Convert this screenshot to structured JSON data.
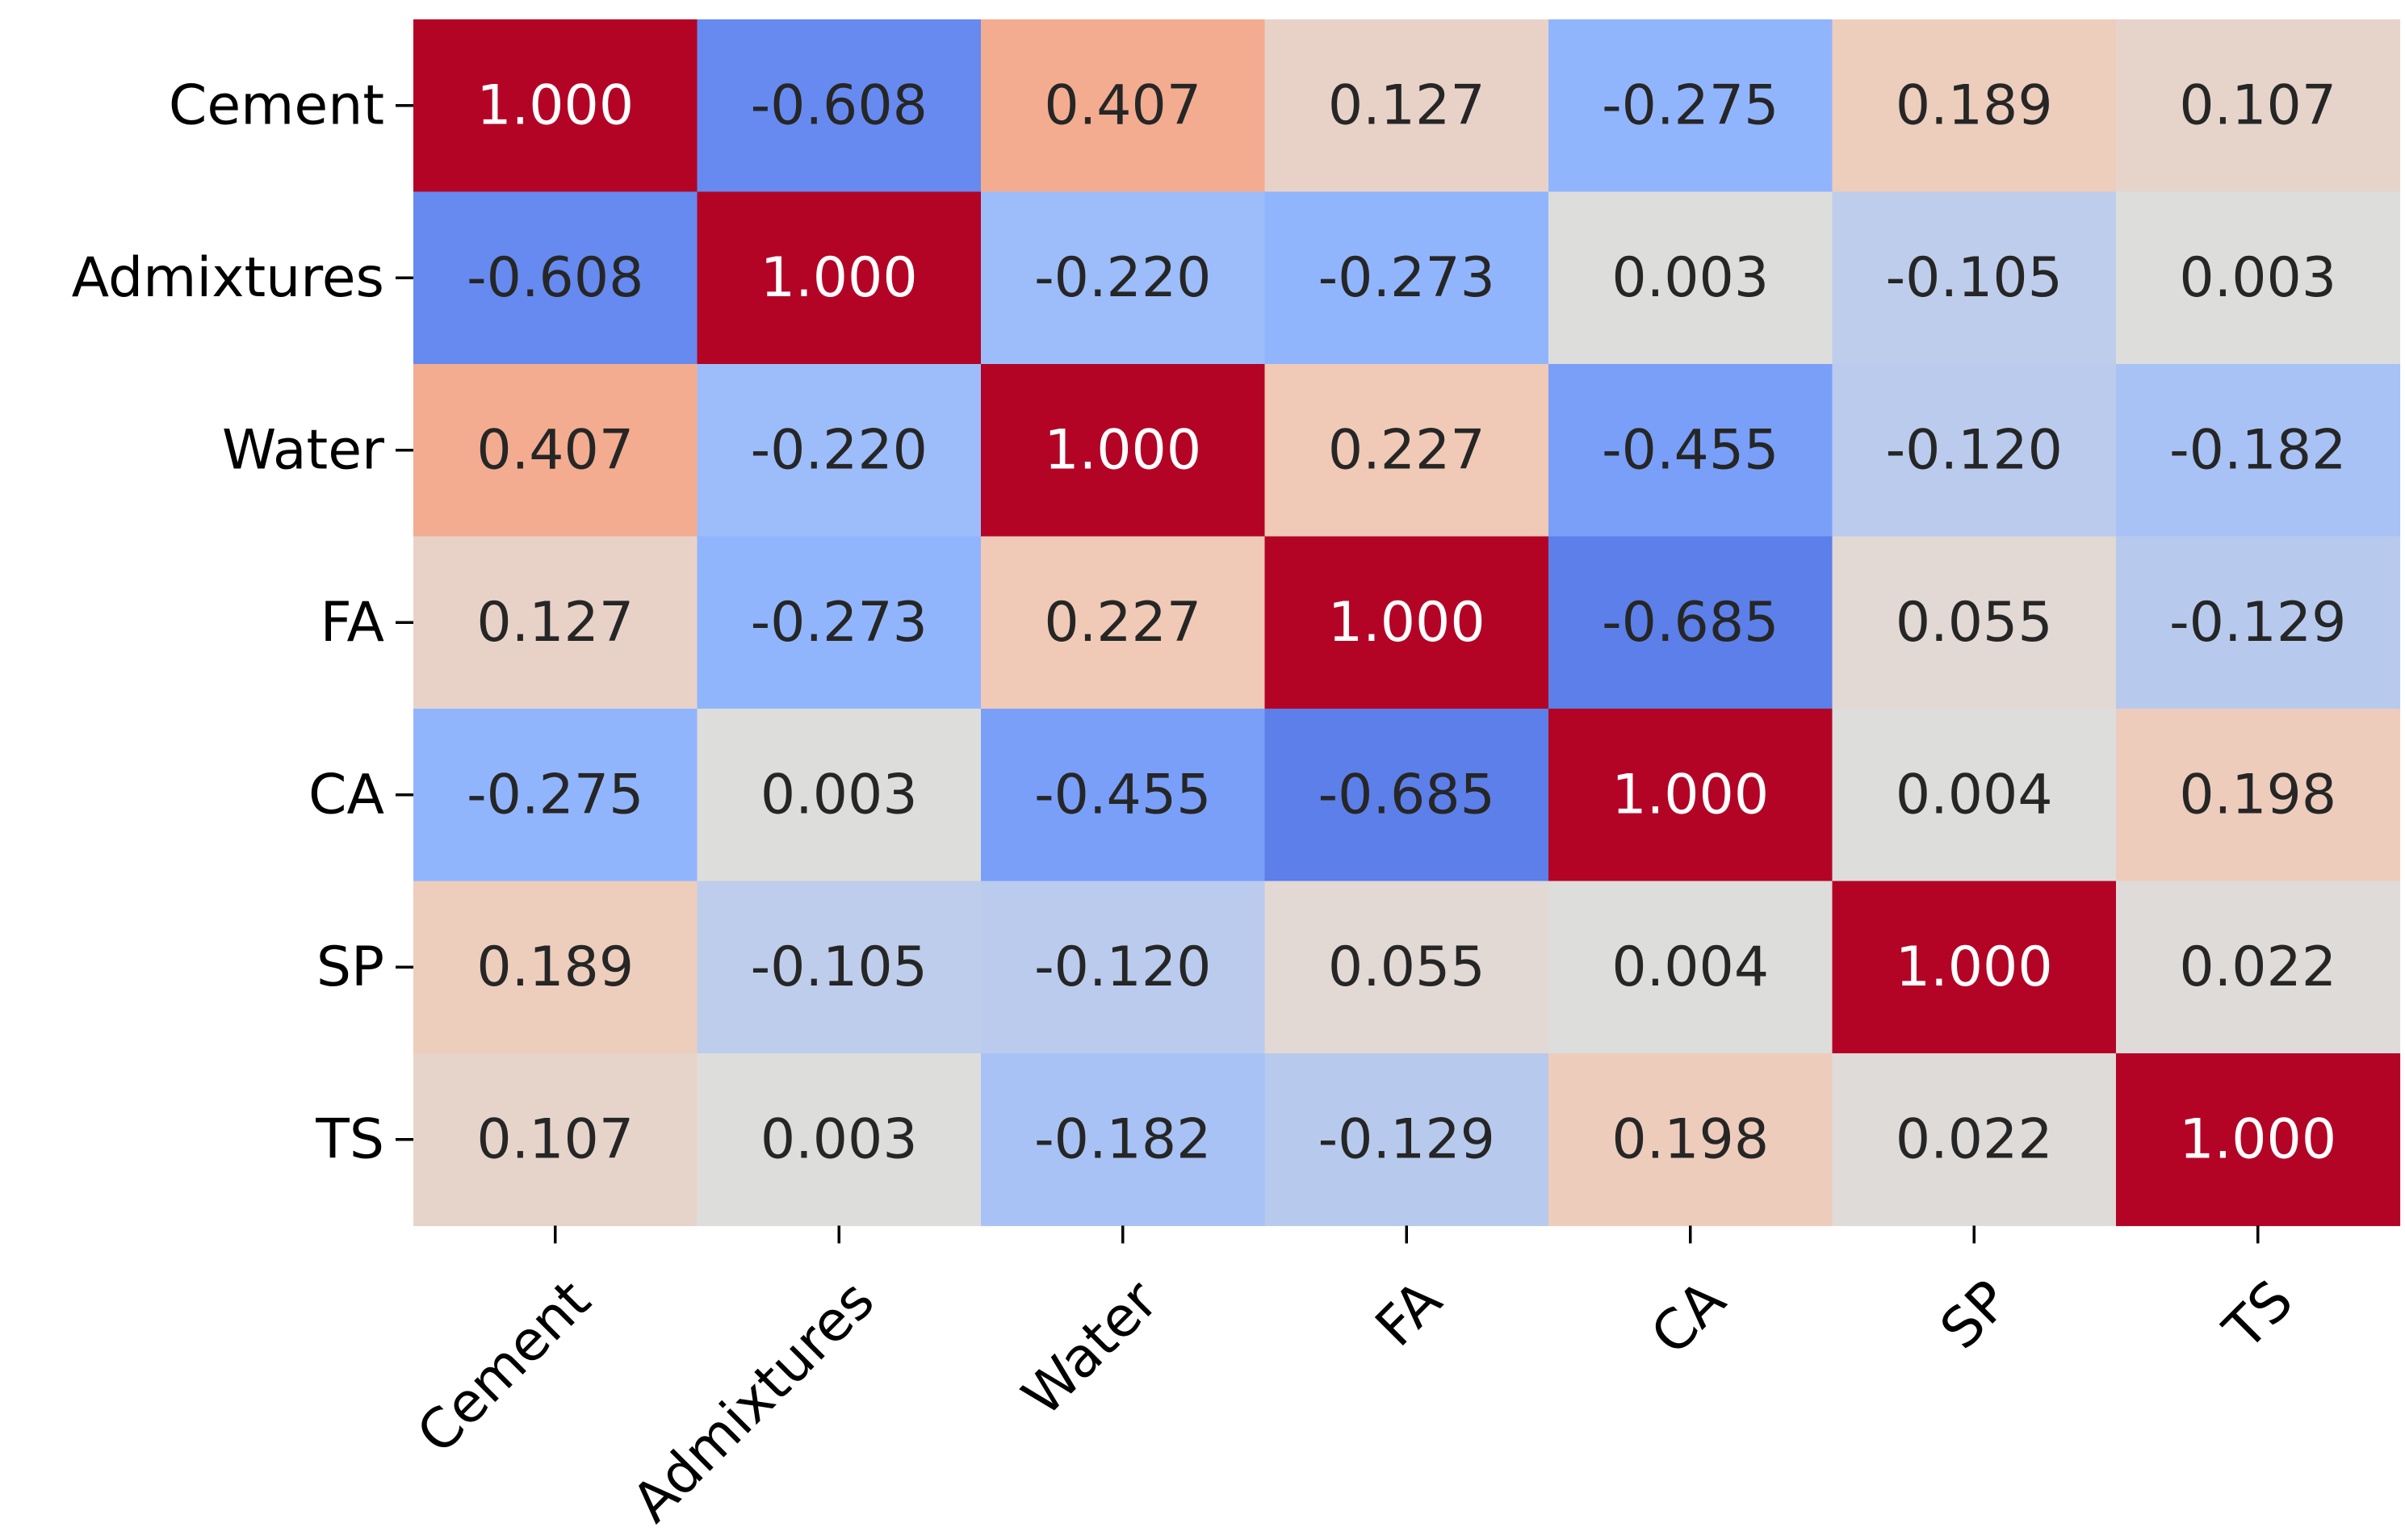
{
  "chart_data": {
    "type": "heatmap",
    "title": "",
    "xlabel": "",
    "ylabel": "",
    "colormap": "coolwarm",
    "value_range": [
      -1,
      1
    ],
    "colorbar": false,
    "row_labels": [
      "Cement",
      "Admixtures",
      "Water",
      "FA",
      "CA",
      "SP",
      "TS"
    ],
    "col_labels": [
      "Cement",
      "Admixtures",
      "Water",
      "FA",
      "CA",
      "SP",
      "TS"
    ],
    "values": [
      [
        1.0,
        -0.608,
        0.407,
        0.127,
        -0.275,
        0.189,
        0.107
      ],
      [
        -0.608,
        1.0,
        -0.22,
        -0.273,
        0.003,
        -0.105,
        0.003
      ],
      [
        0.407,
        -0.22,
        1.0,
        0.227,
        -0.455,
        -0.12,
        -0.182
      ],
      [
        0.127,
        -0.273,
        0.227,
        1.0,
        -0.685,
        0.055,
        -0.129
      ],
      [
        -0.275,
        0.003,
        -0.455,
        -0.685,
        1.0,
        0.004,
        0.198
      ],
      [
        0.189,
        -0.105,
        -0.12,
        0.055,
        0.004,
        1.0,
        0.022
      ],
      [
        0.107,
        0.003,
        -0.182,
        -0.129,
        0.198,
        0.022,
        1.0
      ]
    ],
    "value_labels": [
      [
        "1.000",
        "-0.608",
        "0.407",
        "0.127",
        "-0.275",
        "0.189",
        "0.107"
      ],
      [
        "-0.608",
        "1.000",
        "-0.220",
        "-0.273",
        "0.003",
        "-0.105",
        "0.003"
      ],
      [
        "0.407",
        "-0.220",
        "1.000",
        "0.227",
        "-0.455",
        "-0.120",
        "-0.182"
      ],
      [
        "0.127",
        "-0.273",
        "0.227",
        "1.000",
        "-0.685",
        "0.055",
        "-0.129"
      ],
      [
        "-0.275",
        "0.003",
        "-0.455",
        "-0.685",
        "1.000",
        "0.004",
        "0.198"
      ],
      [
        "0.189",
        "-0.105",
        "-0.120",
        "0.055",
        "0.004",
        "1.000",
        "0.022"
      ],
      [
        "0.107",
        "0.003",
        "-0.182",
        "-0.129",
        "0.198",
        "0.022",
        "1.000"
      ]
    ]
  }
}
